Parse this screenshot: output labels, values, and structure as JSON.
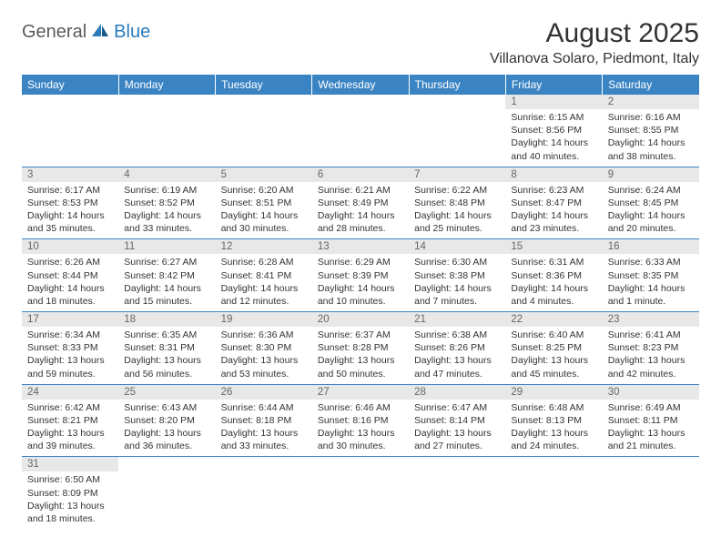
{
  "logo": {
    "general": "General",
    "blue": "Blue"
  },
  "title": "August 2025",
  "location": "Villanova Solaro, Piedmont, Italy",
  "colors": {
    "header_bg": "#3b84c4",
    "header_fg": "#ffffff",
    "daynum_bg": "#e8e8e8",
    "daynum_fg": "#666666",
    "text": "#333333",
    "rule": "#3b84c4"
  },
  "weekdays": [
    "Sunday",
    "Monday",
    "Tuesday",
    "Wednesday",
    "Thursday",
    "Friday",
    "Saturday"
  ],
  "weeks": [
    [
      null,
      null,
      null,
      null,
      null,
      {
        "day": "1",
        "sunrise": "Sunrise: 6:15 AM",
        "sunset": "Sunset: 8:56 PM",
        "daylight1": "Daylight: 14 hours",
        "daylight2": "and 40 minutes."
      },
      {
        "day": "2",
        "sunrise": "Sunrise: 6:16 AM",
        "sunset": "Sunset: 8:55 PM",
        "daylight1": "Daylight: 14 hours",
        "daylight2": "and 38 minutes."
      }
    ],
    [
      {
        "day": "3",
        "sunrise": "Sunrise: 6:17 AM",
        "sunset": "Sunset: 8:53 PM",
        "daylight1": "Daylight: 14 hours",
        "daylight2": "and 35 minutes."
      },
      {
        "day": "4",
        "sunrise": "Sunrise: 6:19 AM",
        "sunset": "Sunset: 8:52 PM",
        "daylight1": "Daylight: 14 hours",
        "daylight2": "and 33 minutes."
      },
      {
        "day": "5",
        "sunrise": "Sunrise: 6:20 AM",
        "sunset": "Sunset: 8:51 PM",
        "daylight1": "Daylight: 14 hours",
        "daylight2": "and 30 minutes."
      },
      {
        "day": "6",
        "sunrise": "Sunrise: 6:21 AM",
        "sunset": "Sunset: 8:49 PM",
        "daylight1": "Daylight: 14 hours",
        "daylight2": "and 28 minutes."
      },
      {
        "day": "7",
        "sunrise": "Sunrise: 6:22 AM",
        "sunset": "Sunset: 8:48 PM",
        "daylight1": "Daylight: 14 hours",
        "daylight2": "and 25 minutes."
      },
      {
        "day": "8",
        "sunrise": "Sunrise: 6:23 AM",
        "sunset": "Sunset: 8:47 PM",
        "daylight1": "Daylight: 14 hours",
        "daylight2": "and 23 minutes."
      },
      {
        "day": "9",
        "sunrise": "Sunrise: 6:24 AM",
        "sunset": "Sunset: 8:45 PM",
        "daylight1": "Daylight: 14 hours",
        "daylight2": "and 20 minutes."
      }
    ],
    [
      {
        "day": "10",
        "sunrise": "Sunrise: 6:26 AM",
        "sunset": "Sunset: 8:44 PM",
        "daylight1": "Daylight: 14 hours",
        "daylight2": "and 18 minutes."
      },
      {
        "day": "11",
        "sunrise": "Sunrise: 6:27 AM",
        "sunset": "Sunset: 8:42 PM",
        "daylight1": "Daylight: 14 hours",
        "daylight2": "and 15 minutes."
      },
      {
        "day": "12",
        "sunrise": "Sunrise: 6:28 AM",
        "sunset": "Sunset: 8:41 PM",
        "daylight1": "Daylight: 14 hours",
        "daylight2": "and 12 minutes."
      },
      {
        "day": "13",
        "sunrise": "Sunrise: 6:29 AM",
        "sunset": "Sunset: 8:39 PM",
        "daylight1": "Daylight: 14 hours",
        "daylight2": "and 10 minutes."
      },
      {
        "day": "14",
        "sunrise": "Sunrise: 6:30 AM",
        "sunset": "Sunset: 8:38 PM",
        "daylight1": "Daylight: 14 hours",
        "daylight2": "and 7 minutes."
      },
      {
        "day": "15",
        "sunrise": "Sunrise: 6:31 AM",
        "sunset": "Sunset: 8:36 PM",
        "daylight1": "Daylight: 14 hours",
        "daylight2": "and 4 minutes."
      },
      {
        "day": "16",
        "sunrise": "Sunrise: 6:33 AM",
        "sunset": "Sunset: 8:35 PM",
        "daylight1": "Daylight: 14 hours",
        "daylight2": "and 1 minute."
      }
    ],
    [
      {
        "day": "17",
        "sunrise": "Sunrise: 6:34 AM",
        "sunset": "Sunset: 8:33 PM",
        "daylight1": "Daylight: 13 hours",
        "daylight2": "and 59 minutes."
      },
      {
        "day": "18",
        "sunrise": "Sunrise: 6:35 AM",
        "sunset": "Sunset: 8:31 PM",
        "daylight1": "Daylight: 13 hours",
        "daylight2": "and 56 minutes."
      },
      {
        "day": "19",
        "sunrise": "Sunrise: 6:36 AM",
        "sunset": "Sunset: 8:30 PM",
        "daylight1": "Daylight: 13 hours",
        "daylight2": "and 53 minutes."
      },
      {
        "day": "20",
        "sunrise": "Sunrise: 6:37 AM",
        "sunset": "Sunset: 8:28 PM",
        "daylight1": "Daylight: 13 hours",
        "daylight2": "and 50 minutes."
      },
      {
        "day": "21",
        "sunrise": "Sunrise: 6:38 AM",
        "sunset": "Sunset: 8:26 PM",
        "daylight1": "Daylight: 13 hours",
        "daylight2": "and 47 minutes."
      },
      {
        "day": "22",
        "sunrise": "Sunrise: 6:40 AM",
        "sunset": "Sunset: 8:25 PM",
        "daylight1": "Daylight: 13 hours",
        "daylight2": "and 45 minutes."
      },
      {
        "day": "23",
        "sunrise": "Sunrise: 6:41 AM",
        "sunset": "Sunset: 8:23 PM",
        "daylight1": "Daylight: 13 hours",
        "daylight2": "and 42 minutes."
      }
    ],
    [
      {
        "day": "24",
        "sunrise": "Sunrise: 6:42 AM",
        "sunset": "Sunset: 8:21 PM",
        "daylight1": "Daylight: 13 hours",
        "daylight2": "and 39 minutes."
      },
      {
        "day": "25",
        "sunrise": "Sunrise: 6:43 AM",
        "sunset": "Sunset: 8:20 PM",
        "daylight1": "Daylight: 13 hours",
        "daylight2": "and 36 minutes."
      },
      {
        "day": "26",
        "sunrise": "Sunrise: 6:44 AM",
        "sunset": "Sunset: 8:18 PM",
        "daylight1": "Daylight: 13 hours",
        "daylight2": "and 33 minutes."
      },
      {
        "day": "27",
        "sunrise": "Sunrise: 6:46 AM",
        "sunset": "Sunset: 8:16 PM",
        "daylight1": "Daylight: 13 hours",
        "daylight2": "and 30 minutes."
      },
      {
        "day": "28",
        "sunrise": "Sunrise: 6:47 AM",
        "sunset": "Sunset: 8:14 PM",
        "daylight1": "Daylight: 13 hours",
        "daylight2": "and 27 minutes."
      },
      {
        "day": "29",
        "sunrise": "Sunrise: 6:48 AM",
        "sunset": "Sunset: 8:13 PM",
        "daylight1": "Daylight: 13 hours",
        "daylight2": "and 24 minutes."
      },
      {
        "day": "30",
        "sunrise": "Sunrise: 6:49 AM",
        "sunset": "Sunset: 8:11 PM",
        "daylight1": "Daylight: 13 hours",
        "daylight2": "and 21 minutes."
      }
    ],
    [
      {
        "day": "31",
        "sunrise": "Sunrise: 6:50 AM",
        "sunset": "Sunset: 8:09 PM",
        "daylight1": "Daylight: 13 hours",
        "daylight2": "and 18 minutes."
      },
      null,
      null,
      null,
      null,
      null,
      null
    ]
  ]
}
